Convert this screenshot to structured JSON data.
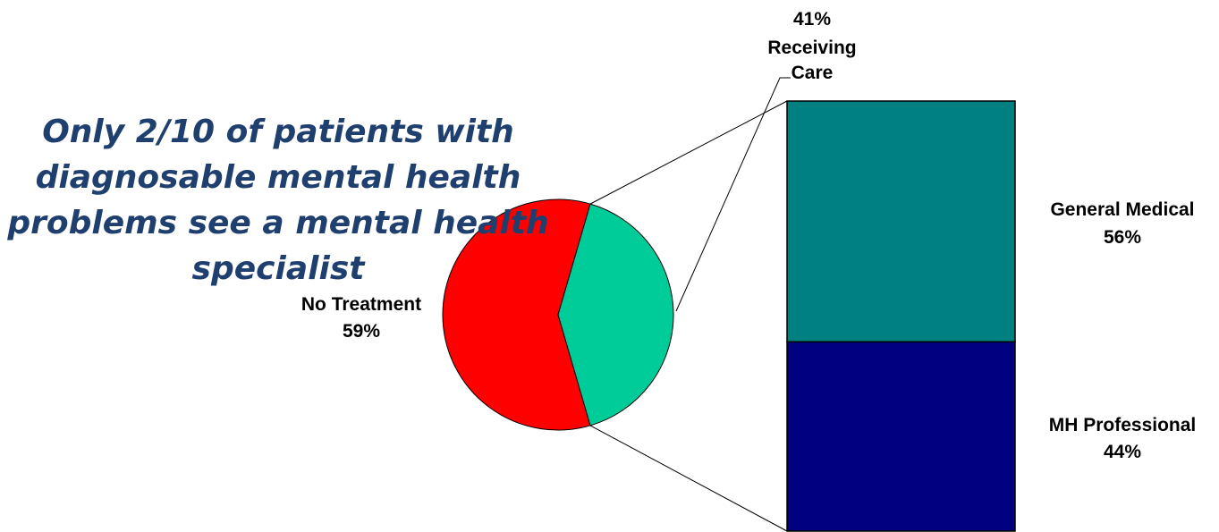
{
  "headline": [
    "Only 2/10 of patients with",
    "diagnosable mental health",
    "problems see a mental health",
    "specialist"
  ],
  "colors": {
    "no_treatment": "#ff0000",
    "receiving_care": "#00cc99",
    "general_medical": "#008080",
    "mh_professional": "#000080",
    "headline": "#1f3f6e"
  },
  "chart_data": [
    {
      "type": "pie",
      "slices": [
        {
          "label": "No Treatment",
          "value": 59,
          "value_label": "59%",
          "color": "#ff0000"
        },
        {
          "label": "Receiving Care",
          "value": 41,
          "value_label": "41%",
          "color": "#00cc99",
          "exploded_to_bar": true
        }
      ]
    },
    {
      "type": "bar",
      "stacked": true,
      "total_of": "Receiving Care",
      "segments": [
        {
          "label": "General Medical",
          "value": 56,
          "value_label": "56%",
          "color": "#008080"
        },
        {
          "label": "MH Professional",
          "value": 44,
          "value_label": "44%",
          "color": "#000080"
        }
      ]
    }
  ]
}
